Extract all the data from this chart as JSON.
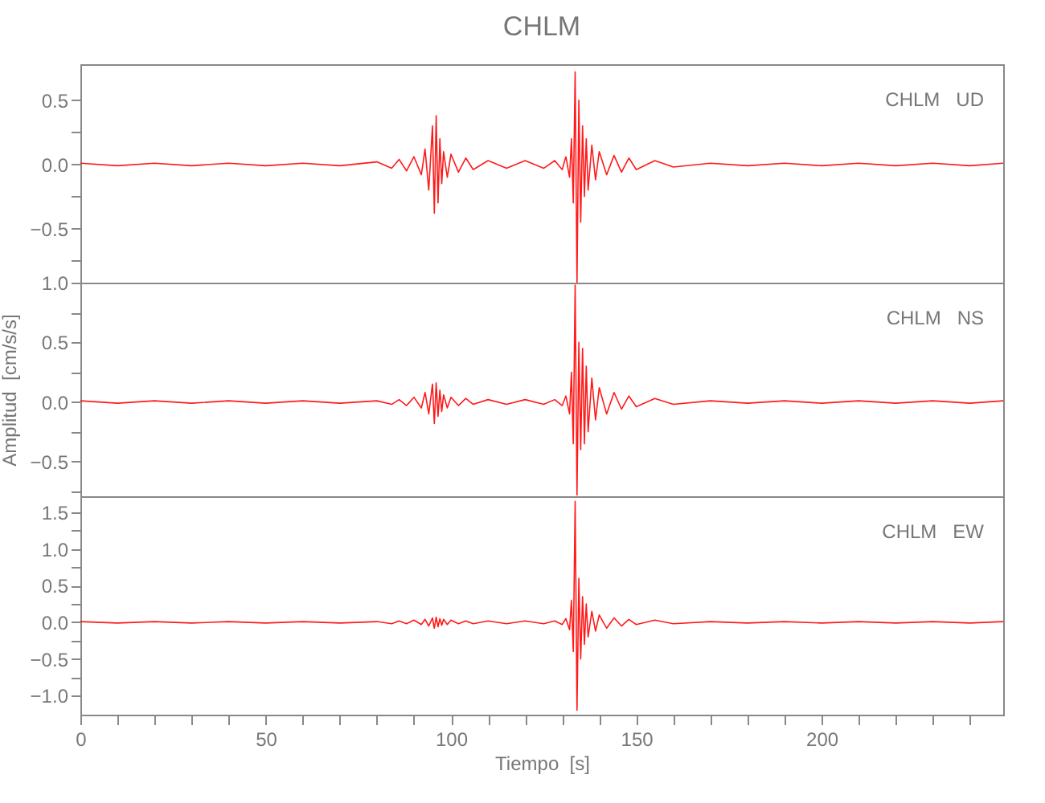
{
  "chart_data": [
    {
      "type": "line",
      "title": "CHLM",
      "annotations": [
        "CHLM   UD"
      ],
      "tick_labels": "y",
      "x": [
        0,
        10,
        20,
        30,
        40,
        50,
        60,
        70,
        80,
        84,
        86,
        88,
        90,
        92,
        93,
        94,
        95,
        95.5,
        96,
        96.5,
        97,
        97.5,
        98,
        99,
        100,
        102,
        104,
        106,
        110,
        115,
        120,
        125,
        128,
        130,
        131,
        132,
        132.5,
        133,
        133.5,
        134,
        134.5,
        135,
        135.5,
        136,
        136.5,
        137,
        138,
        139,
        140,
        142,
        144,
        146,
        148,
        150,
        155,
        160,
        170,
        180,
        190,
        200,
        210,
        220,
        230,
        240,
        249
      ],
      "xlim": [
        0,
        249
      ],
      "xticks": [
        0,
        {
          "value": 10,
          "label": null
        },
        {
          "value": 20,
          "label": null
        },
        {
          "value": 30,
          "label": null
        },
        {
          "value": 40,
          "label": null
        },
        50,
        {
          "value": 60,
          "label": null
        },
        {
          "value": 70,
          "label": null
        },
        {
          "value": 80,
          "label": null
        },
        {
          "value": 90,
          "label": null
        },
        100,
        {
          "value": 110,
          "label": null
        },
        {
          "value": 120,
          "label": null
        },
        {
          "value": 130,
          "label": null
        },
        {
          "value": 140,
          "label": null
        },
        150,
        {
          "value": 160,
          "label": null
        },
        {
          "value": 170,
          "label": null
        },
        {
          "value": 180,
          "label": null
        },
        {
          "value": 190,
          "label": null
        },
        200,
        {
          "value": 210,
          "label": null
        },
        {
          "value": 220,
          "label": null
        },
        {
          "value": 230,
          "label": null
        },
        {
          "value": 240,
          "label": null
        }
      ],
      "ylim": [
        -0.92,
        0.78
      ],
      "yticks": [
        {
          "value": -0.75,
          "label": null
        },
        {
          "value": -0.5,
          "label": "−0.5"
        },
        {
          "value": -0.25,
          "label": null
        },
        {
          "value": 0,
          "label": "0.0"
        },
        {
          "value": 0.25,
          "label": null
        },
        {
          "value": 0.5,
          "label": "0.5"
        }
      ],
      "series": [
        {
          "color": "#ff0000",
          "values": [
            0.01,
            -0.01,
            0.01,
            -0.01,
            0.01,
            -0.01,
            0.01,
            -0.01,
            0.02,
            -0.03,
            0.04,
            -0.05,
            0.06,
            -0.08,
            0.12,
            -0.2,
            0.3,
            -0.38,
            0.38,
            -0.3,
            0.2,
            -0.15,
            0.1,
            -0.1,
            0.08,
            -0.06,
            0.05,
            -0.04,
            0.03,
            -0.03,
            0.03,
            -0.03,
            0.03,
            -0.04,
            0.06,
            -0.1,
            0.2,
            -0.3,
            0.72,
            -0.92,
            0.5,
            -0.45,
            0.3,
            -0.25,
            0.2,
            -0.2,
            0.15,
            -0.12,
            0.1,
            -0.08,
            0.07,
            -0.06,
            0.05,
            -0.04,
            0.03,
            -0.02,
            0.01,
            -0.01,
            0.01,
            -0.01,
            0.01,
            -0.01,
            0.01,
            -0.01,
            0.01
          ]
        }
      ]
    },
    {
      "type": "line",
      "ylabel": "Amplitud  [cm/s/s]",
      "annotations": [
        "CHLM   NS"
      ],
      "tick_labels": "y",
      "x": [
        0,
        10,
        20,
        30,
        40,
        50,
        60,
        70,
        80,
        84,
        86,
        88,
        90,
        92,
        93,
        94,
        95,
        95.5,
        96,
        96.5,
        97,
        97.5,
        98,
        99,
        100,
        102,
        104,
        106,
        110,
        115,
        120,
        125,
        128,
        130,
        131,
        132,
        132.5,
        133,
        133.5,
        134,
        134.5,
        135,
        135.5,
        136,
        136.5,
        137,
        138,
        139,
        140,
        142,
        144,
        146,
        148,
        150,
        155,
        160,
        170,
        180,
        190,
        200,
        210,
        220,
        230,
        240,
        249
      ],
      "xlim": [
        0,
        249
      ],
      "xticks": [
        0,
        {
          "value": 10,
          "label": null
        },
        {
          "value": 20,
          "label": null
        },
        {
          "value": 30,
          "label": null
        },
        {
          "value": 40,
          "label": null
        },
        50,
        {
          "value": 60,
          "label": null
        },
        {
          "value": 70,
          "label": null
        },
        {
          "value": 80,
          "label": null
        },
        {
          "value": 90,
          "label": null
        },
        100,
        {
          "value": 110,
          "label": null
        },
        {
          "value": 120,
          "label": null
        },
        {
          "value": 130,
          "label": null
        },
        {
          "value": 140,
          "label": null
        },
        150,
        {
          "value": 160,
          "label": null
        },
        {
          "value": 170,
          "label": null
        },
        {
          "value": 180,
          "label": null
        },
        {
          "value": 190,
          "label": null
        },
        200,
        {
          "value": 210,
          "label": null
        },
        {
          "value": 220,
          "label": null
        },
        {
          "value": 230,
          "label": null
        },
        {
          "value": 240,
          "label": null
        }
      ],
      "ylim": [
        -0.79,
        1.0
      ],
      "yticks": [
        {
          "value": -0.75,
          "label": null
        },
        {
          "value": -0.5,
          "label": "−0.5"
        },
        {
          "value": -0.25,
          "label": null
        },
        {
          "value": 0,
          "label": "0.0"
        },
        {
          "value": 0.25,
          "label": null
        },
        {
          "value": 0.5,
          "label": "0.5"
        },
        {
          "value": 0.75,
          "label": null
        },
        {
          "value": 1,
          "label": "1.0"
        }
      ],
      "series": [
        {
          "color": "#ff0000",
          "values": [
            0.01,
            -0.01,
            0.01,
            -0.01,
            0.01,
            -0.01,
            0.01,
            -0.01,
            0.01,
            -0.02,
            0.02,
            -0.03,
            0.04,
            -0.05,
            0.08,
            -0.1,
            0.15,
            -0.18,
            0.16,
            -0.12,
            0.1,
            -0.08,
            0.06,
            -0.05,
            0.04,
            -0.03,
            0.03,
            -0.02,
            0.02,
            -0.02,
            0.02,
            -0.02,
            0.02,
            -0.03,
            0.05,
            -0.1,
            0.25,
            -0.35,
            0.98,
            -0.78,
            0.5,
            -0.4,
            0.45,
            -0.35,
            0.3,
            -0.25,
            0.2,
            -0.15,
            0.12,
            -0.1,
            0.08,
            -0.06,
            0.05,
            -0.04,
            0.03,
            -0.02,
            0.01,
            -0.01,
            0.01,
            -0.01,
            0.01,
            -0.01,
            0.01,
            -0.01,
            0.01
          ]
        }
      ]
    },
    {
      "type": "line",
      "xlabel": "Tiempo  [s]",
      "annotations": [
        "CHLM   EW"
      ],
      "x": [
        0,
        10,
        20,
        30,
        40,
        50,
        60,
        70,
        80,
        84,
        86,
        88,
        90,
        92,
        93,
        94,
        95,
        95.5,
        96,
        96.5,
        97,
        97.5,
        98,
        99,
        100,
        102,
        104,
        106,
        110,
        115,
        120,
        125,
        128,
        130,
        131,
        132,
        132.5,
        133,
        133.5,
        134,
        134.5,
        135,
        135.5,
        136,
        136.5,
        137,
        138,
        139,
        140,
        142,
        144,
        146,
        148,
        150,
        155,
        160,
        170,
        180,
        190,
        200,
        210,
        220,
        230,
        240,
        249
      ],
      "xlim": [
        0,
        249
      ],
      "xticks": [
        0,
        {
          "value": 10,
          "label": null
        },
        {
          "value": 20,
          "label": null
        },
        {
          "value": 30,
          "label": null
        },
        {
          "value": 40,
          "label": null
        },
        50,
        {
          "value": 60,
          "label": null
        },
        {
          "value": 70,
          "label": null
        },
        {
          "value": 80,
          "label": null
        },
        {
          "value": 90,
          "label": null
        },
        100,
        {
          "value": 110,
          "label": null
        },
        {
          "value": 120,
          "label": null
        },
        {
          "value": 130,
          "label": null
        },
        {
          "value": 140,
          "label": null
        },
        150,
        {
          "value": 160,
          "label": null
        },
        {
          "value": 170,
          "label": null
        },
        {
          "value": 180,
          "label": null
        },
        {
          "value": 190,
          "label": null
        },
        200,
        {
          "value": 210,
          "label": null
        },
        {
          "value": 220,
          "label": null
        },
        {
          "value": 230,
          "label": null
        },
        {
          "value": 240,
          "label": null
        }
      ],
      "ylim": [
        -1.26,
        1.72
      ],
      "yticks": [
        {
          "value": -1,
          "label": "−1.0"
        },
        {
          "value": -0.75,
          "label": null
        },
        {
          "value": -0.5,
          "label": "−0.5"
        },
        {
          "value": -0.25,
          "label": null
        },
        {
          "value": 0,
          "label": "0.0"
        },
        {
          "value": 0.25,
          "label": null
        },
        {
          "value": 0.5,
          "label": "0.5"
        },
        {
          "value": 0.75,
          "label": null
        },
        {
          "value": 1,
          "label": "1.0"
        },
        {
          "value": 1.25,
          "label": null
        },
        {
          "value": 1.5,
          "label": "1.5"
        }
      ],
      "series": [
        {
          "color": "#ff0000",
          "values": [
            0.01,
            -0.01,
            0.01,
            -0.01,
            0.01,
            -0.01,
            0.01,
            -0.01,
            0.01,
            -0.02,
            0.02,
            -0.02,
            0.03,
            -0.03,
            0.04,
            -0.05,
            0.06,
            -0.08,
            0.07,
            -0.06,
            0.05,
            -0.04,
            0.04,
            -0.03,
            0.03,
            -0.02,
            0.02,
            -0.02,
            0.02,
            -0.02,
            0.02,
            -0.02,
            0.02,
            -0.03,
            0.05,
            -0.1,
            0.3,
            -0.4,
            1.65,
            -1.2,
            0.6,
            -0.5,
            0.35,
            -0.3,
            0.25,
            -0.2,
            0.15,
            -0.12,
            0.1,
            -0.08,
            0.06,
            -0.05,
            0.04,
            -0.03,
            0.03,
            -0.02,
            0.01,
            -0.01,
            0.01,
            -0.01,
            0.01,
            -0.01,
            0.01,
            -0.01,
            0.01
          ]
        }
      ]
    }
  ]
}
